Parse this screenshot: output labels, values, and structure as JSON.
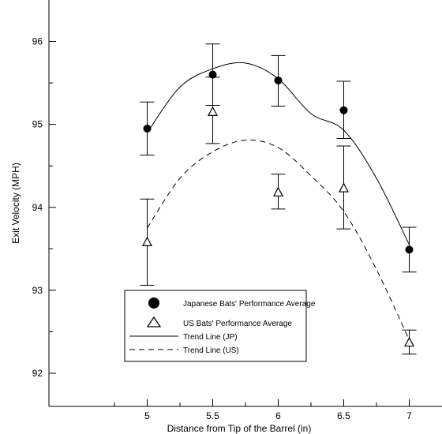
{
  "chart_data": {
    "type": "scatter",
    "title": "",
    "xlabel": "Distance from Tip of the Barrel (in)",
    "ylabel": "Exit Velocity (MPH)",
    "xlim": [
      4.25,
      7.25
    ],
    "ylim": [
      91.6,
      96.5
    ],
    "xticks": [
      5,
      5.5,
      6,
      6.5,
      7
    ],
    "xtick_labels": [
      "5",
      "5.5",
      "6",
      "6.5",
      "7"
    ],
    "yticks": [
      92,
      93,
      94,
      95,
      96
    ],
    "ytick_labels": [
      "92",
      "93",
      "94",
      "95",
      "96"
    ],
    "grid": false,
    "legend_position": "bottom-center",
    "series": [
      {
        "name": "Japanese Bats' Performance Average",
        "marker": "filled-circle",
        "x": [
          5,
          5.5,
          6,
          6.5,
          7
        ],
        "y": [
          94.95,
          95.6,
          95.53,
          95.17,
          93.49
        ],
        "err_low": [
          94.63,
          95.23,
          95.22,
          94.83,
          93.22
        ],
        "err_high": [
          95.27,
          95.97,
          95.83,
          95.52,
          93.76
        ]
      },
      {
        "name": "US Bats' Performance Average",
        "marker": "open-triangle",
        "x": [
          5,
          5.5,
          6,
          6.5,
          7
        ],
        "y": [
          93.58,
          95.15,
          94.18,
          94.23,
          92.37
        ],
        "err_low": [
          93.06,
          94.77,
          93.98,
          93.74,
          92.23
        ],
        "err_high": [
          94.1,
          95.57,
          94.4,
          94.74,
          92.52
        ]
      }
    ],
    "trend_lines": [
      {
        "name": "Trend Line (JP)",
        "style": "solid",
        "x": [
          5,
          5.25,
          5.5,
          5.75,
          6,
          6.25,
          6.5,
          6.75,
          7
        ],
        "y": [
          94.9,
          95.45,
          95.67,
          95.74,
          95.55,
          95.13,
          94.93,
          94.35,
          93.55
        ]
      },
      {
        "name": "Trend Line (US)",
        "style": "dashed",
        "x": [
          5,
          5.25,
          5.5,
          5.75,
          6,
          6.25,
          6.5,
          6.75,
          7
        ],
        "y": [
          93.75,
          94.35,
          94.67,
          94.81,
          94.72,
          94.38,
          93.95,
          93.25,
          92.4
        ]
      }
    ]
  }
}
